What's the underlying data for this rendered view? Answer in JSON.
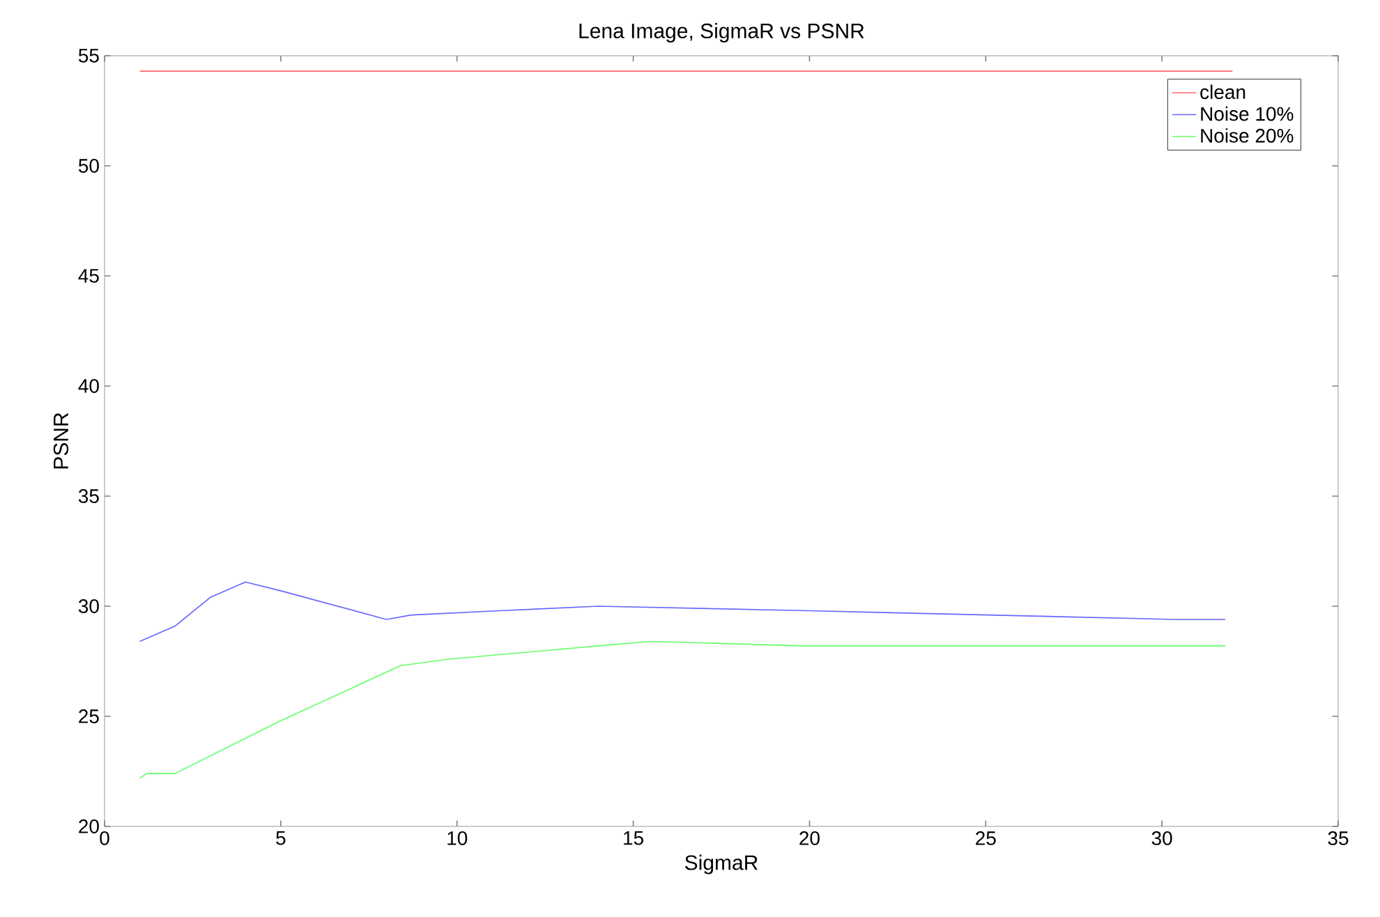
{
  "chart_data": {
    "type": "line",
    "title": "Lena Image, SigmaR vs PSNR",
    "xlabel": "SigmaR",
    "ylabel": "PSNR",
    "xlim": [
      0,
      35
    ],
    "xticks": [
      0,
      5,
      10,
      15,
      20,
      25,
      30,
      35
    ],
    "ylim": [
      20,
      55
    ],
    "yticks": [
      20,
      25,
      30,
      35,
      40,
      45,
      50,
      55
    ],
    "legend": "top right",
    "grid": false,
    "marker": "none",
    "line_style": "solid",
    "series": [
      {
        "name": "clean",
        "color": "#ff6666",
        "x": [
          1,
          32
        ],
        "values": [
          54.3,
          54.3
        ]
      },
      {
        "name": "Noise 10%",
        "color": "#6666ff",
        "x": [
          1,
          2,
          3,
          4,
          5,
          8,
          8.7,
          11.3,
          14,
          19.8,
          25.1,
          30.4,
          31.8
        ],
        "values": [
          28.4,
          29.1,
          30.4,
          31.1,
          30.7,
          29.4,
          29.6,
          29.8,
          30.0,
          29.8,
          29.6,
          29.4,
          29.4
        ]
      },
      {
        "name": "Noise 20%",
        "color": "#66ff66",
        "x": [
          1,
          1.2,
          2,
          5,
          8.4,
          9.8,
          11.2,
          12.6,
          14,
          15.5,
          19.8,
          31.8
        ],
        "values": [
          22.2,
          22.4,
          22.4,
          24.8,
          27.3,
          27.6,
          27.8,
          28.0,
          28.2,
          28.4,
          28.2,
          28.2
        ]
      }
    ]
  }
}
